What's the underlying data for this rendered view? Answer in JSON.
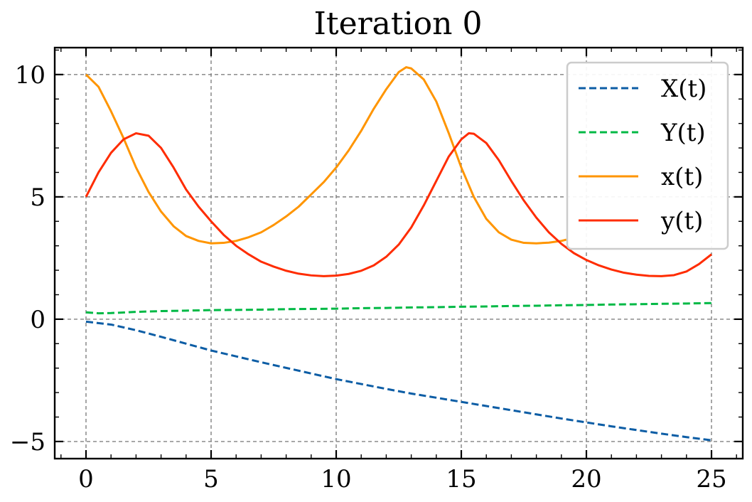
{
  "chart_data": {
    "type": "line",
    "title": "Iteration 0",
    "xlabel": "",
    "ylabel": "",
    "xlim": [
      -1.25,
      26.25
    ],
    "ylim": [
      -5.7,
      11.1
    ],
    "xticks": [
      0,
      5,
      10,
      15,
      20,
      25
    ],
    "xtick_labels": [
      "0",
      "5",
      "10",
      "15",
      "20",
      "25"
    ],
    "yticks": [
      -5,
      0,
      5,
      10
    ],
    "ytick_labels": [
      "−5",
      "0",
      "5",
      "10"
    ],
    "grid": true,
    "legend": "top-right",
    "series": [
      {
        "name": "X(t)",
        "color": "#0c5da5",
        "style": "dashed",
        "x": [
          0,
          1,
          2,
          3,
          4,
          5,
          6,
          7,
          8,
          9,
          10,
          11,
          12,
          13,
          14,
          15,
          16,
          17,
          18,
          19,
          20,
          21,
          22,
          23,
          24,
          25
        ],
        "y": [
          -0.1,
          -0.22,
          -0.45,
          -0.72,
          -1.0,
          -1.28,
          -1.52,
          -1.76,
          -1.99,
          -2.22,
          -2.45,
          -2.65,
          -2.85,
          -3.04,
          -3.21,
          -3.38,
          -3.55,
          -3.72,
          -3.89,
          -4.06,
          -4.22,
          -4.38,
          -4.53,
          -4.68,
          -4.82,
          -4.95
        ]
      },
      {
        "name": "Y(t)",
        "color": "#00b945",
        "style": "dashed",
        "x": [
          0,
          0.5,
          1,
          2,
          3,
          4,
          5,
          6,
          7,
          8,
          9,
          10,
          11,
          12,
          13,
          14,
          15,
          16,
          17,
          18,
          19,
          20,
          21,
          22,
          23,
          24,
          25
        ],
        "y": [
          0.28,
          0.24,
          0.25,
          0.3,
          0.33,
          0.35,
          0.37,
          0.38,
          0.39,
          0.41,
          0.42,
          0.43,
          0.45,
          0.46,
          0.48,
          0.49,
          0.51,
          0.52,
          0.54,
          0.55,
          0.57,
          0.58,
          0.6,
          0.61,
          0.63,
          0.64,
          0.66
        ]
      },
      {
        "name": "x(t)",
        "color": "#ff9500",
        "style": "solid",
        "x": [
          0,
          0.5,
          1,
          1.5,
          2,
          2.5,
          3,
          3.5,
          4,
          4.5,
          5,
          5.5,
          6,
          6.5,
          7,
          7.5,
          8,
          8.5,
          9,
          9.5,
          10,
          10.5,
          11,
          11.5,
          12,
          12.5,
          12.8,
          13,
          13.5,
          14,
          14.5,
          15,
          15.5,
          16,
          16.5,
          17,
          17.5,
          18,
          18.5,
          19,
          19.2
        ],
        "y": [
          10.0,
          9.5,
          8.5,
          7.4,
          6.2,
          5.2,
          4.4,
          3.8,
          3.4,
          3.2,
          3.1,
          3.12,
          3.2,
          3.35,
          3.55,
          3.85,
          4.2,
          4.6,
          5.1,
          5.6,
          6.2,
          6.9,
          7.7,
          8.6,
          9.4,
          10.1,
          10.3,
          10.25,
          9.8,
          8.9,
          7.6,
          6.2,
          5.0,
          4.1,
          3.55,
          3.25,
          3.12,
          3.1,
          3.13,
          3.2,
          3.25
        ]
      },
      {
        "name": "y(t)",
        "color": "#ff2c00",
        "style": "solid",
        "x": [
          0,
          0.5,
          1,
          1.5,
          2,
          2.5,
          3,
          3.5,
          4,
          4.5,
          5,
          5.5,
          6,
          6.5,
          7,
          7.5,
          8,
          8.5,
          9,
          9.5,
          10,
          10.5,
          11,
          11.5,
          12,
          12.5,
          13,
          13.5,
          14,
          14.5,
          15,
          15.3,
          15.5,
          16,
          16.5,
          17,
          17.5,
          18,
          18.5,
          19,
          19.5,
          20,
          20.5,
          21,
          21.5,
          22,
          22.5,
          23,
          23.5,
          24,
          24.5,
          25
        ],
        "y": [
          5.0,
          6.0,
          6.8,
          7.35,
          7.6,
          7.5,
          7.0,
          6.2,
          5.3,
          4.6,
          4.0,
          3.45,
          3.0,
          2.65,
          2.35,
          2.15,
          1.98,
          1.86,
          1.79,
          1.76,
          1.78,
          1.85,
          1.98,
          2.2,
          2.55,
          3.05,
          3.75,
          4.65,
          5.65,
          6.65,
          7.35,
          7.6,
          7.58,
          7.2,
          6.5,
          5.65,
          4.85,
          4.15,
          3.55,
          3.08,
          2.7,
          2.42,
          2.2,
          2.03,
          1.9,
          1.82,
          1.77,
          1.76,
          1.8,
          1.95,
          2.25,
          2.65
        ]
      }
    ]
  }
}
